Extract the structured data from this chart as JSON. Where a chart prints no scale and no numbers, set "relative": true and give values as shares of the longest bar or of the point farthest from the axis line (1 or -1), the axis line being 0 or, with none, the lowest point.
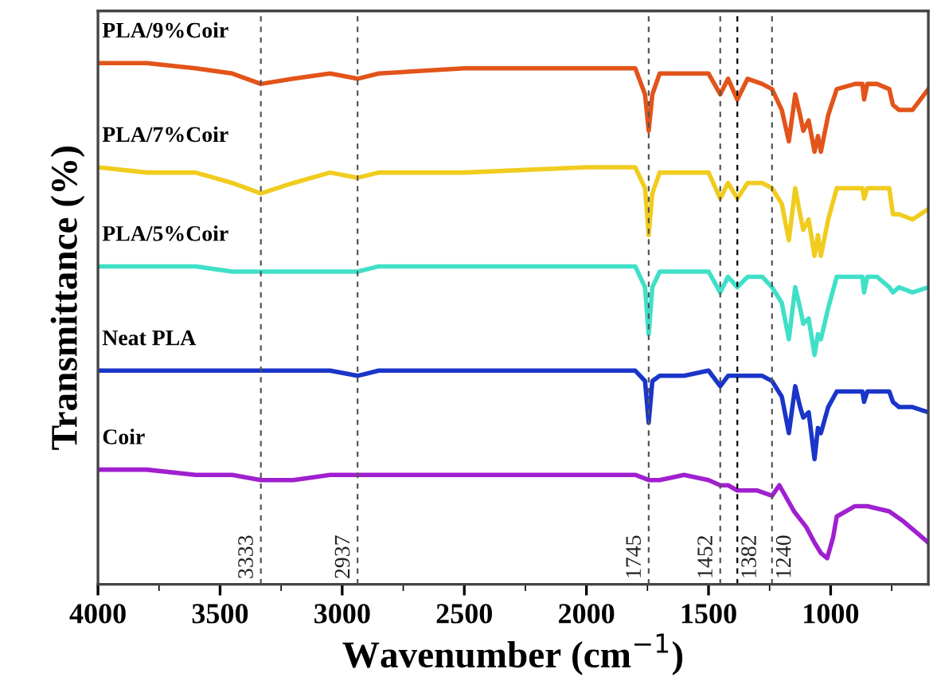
{
  "chart_data": {
    "type": "line",
    "relative": true,
    "xlabel": "Wavenumber (cm$^{−1}$)",
    "ylabel": "Transmittance (%)",
    "xlim": [
      4000,
      600
    ],
    "xticks": [
      4000,
      3500,
      3000,
      2500,
      2000,
      1500,
      1000
    ],
    "legend": false,
    "grid": false,
    "ref_lines": [
      {
        "axis": "x",
        "value": 3333,
        "label": "3333",
        "line_style": "dashed",
        "color": "#555555"
      },
      {
        "axis": "x",
        "value": 2937,
        "label": "2937",
        "line_style": "dashed",
        "color": "#555555"
      },
      {
        "axis": "x",
        "value": 1745,
        "label": "1745",
        "line_style": "dashed",
        "color": "#555555"
      },
      {
        "axis": "x",
        "value": 1452,
        "label": "1452",
        "line_style": "dashed",
        "color": "#555555"
      },
      {
        "axis": "x",
        "value": 1382,
        "label": "1382",
        "line_style": "dashed",
        "color": "#000000"
      },
      {
        "axis": "x",
        "value": 1240,
        "label": "1240",
        "line_style": "dashed",
        "color": "#555555"
      }
    ],
    "series": [
      {
        "name": "PLA/9%Coir",
        "color": "#e2541a",
        "x": [
          4000,
          3800,
          3600,
          3450,
          3333,
          3200,
          3050,
          2937,
          2850,
          2500,
          2000,
          1800,
          1760,
          1745,
          1730,
          1700,
          1600,
          1500,
          1452,
          1420,
          1382,
          1340,
          1280,
          1240,
          1200,
          1171,
          1145,
          1125,
          1112,
          1090,
          1066,
          1052,
          1040,
          1010,
          975,
          900,
          870,
          863,
          850,
          810,
          760,
          745,
          720,
          665,
          600
        ],
        "values": [
          1.0,
          1.0,
          0.99,
          0.98,
          0.96,
          0.97,
          0.98,
          0.97,
          0.98,
          0.99,
          0.99,
          0.99,
          0.94,
          0.87,
          0.94,
          0.98,
          0.98,
          0.98,
          0.94,
          0.97,
          0.93,
          0.97,
          0.96,
          0.95,
          0.91,
          0.85,
          0.94,
          0.9,
          0.87,
          0.89,
          0.83,
          0.86,
          0.83,
          0.9,
          0.95,
          0.96,
          0.96,
          0.93,
          0.96,
          0.96,
          0.95,
          0.92,
          0.91,
          0.91,
          0.95
        ]
      },
      {
        "name": "PLA/7%Coir",
        "color": "#f0cc1e",
        "x": [
          4000,
          3800,
          3600,
          3450,
          3333,
          3200,
          3050,
          2937,
          2850,
          2500,
          2000,
          1800,
          1760,
          1745,
          1730,
          1700,
          1600,
          1500,
          1452,
          1420,
          1382,
          1340,
          1280,
          1240,
          1200,
          1171,
          1145,
          1125,
          1112,
          1090,
          1066,
          1052,
          1040,
          1010,
          975,
          900,
          870,
          863,
          850,
          810,
          760,
          745,
          720,
          665,
          600
        ],
        "values": [
          0.8,
          0.79,
          0.79,
          0.77,
          0.75,
          0.77,
          0.79,
          0.78,
          0.79,
          0.79,
          0.8,
          0.8,
          0.76,
          0.67,
          0.75,
          0.79,
          0.79,
          0.79,
          0.74,
          0.77,
          0.74,
          0.77,
          0.77,
          0.76,
          0.73,
          0.66,
          0.76,
          0.71,
          0.68,
          0.7,
          0.63,
          0.67,
          0.63,
          0.7,
          0.76,
          0.76,
          0.76,
          0.74,
          0.76,
          0.76,
          0.76,
          0.71,
          0.71,
          0.7,
          0.72
        ]
      },
      {
        "name": "PLA/5%Coir",
        "color": "#40e0c8",
        "x": [
          4000,
          3800,
          3600,
          3450,
          3333,
          3200,
          3050,
          2937,
          2850,
          2500,
          2000,
          1800,
          1760,
          1745,
          1730,
          1700,
          1600,
          1500,
          1452,
          1420,
          1382,
          1340,
          1280,
          1240,
          1200,
          1171,
          1145,
          1125,
          1112,
          1090,
          1066,
          1052,
          1040,
          1010,
          975,
          900,
          870,
          863,
          850,
          810,
          760,
          745,
          720,
          665,
          600
        ],
        "values": [
          0.61,
          0.61,
          0.61,
          0.6,
          0.6,
          0.6,
          0.6,
          0.6,
          0.61,
          0.61,
          0.61,
          0.61,
          0.57,
          0.48,
          0.57,
          0.6,
          0.6,
          0.6,
          0.56,
          0.59,
          0.57,
          0.59,
          0.59,
          0.57,
          0.54,
          0.47,
          0.57,
          0.53,
          0.5,
          0.51,
          0.44,
          0.48,
          0.47,
          0.53,
          0.59,
          0.59,
          0.59,
          0.56,
          0.59,
          0.59,
          0.57,
          0.56,
          0.57,
          0.56,
          0.57
        ]
      },
      {
        "name": "Neat PLA",
        "color": "#1a35c8",
        "x": [
          4000,
          3800,
          3600,
          3450,
          3333,
          3200,
          3050,
          2937,
          2850,
          2500,
          2000,
          1800,
          1760,
          1745,
          1730,
          1700,
          1600,
          1500,
          1452,
          1420,
          1382,
          1340,
          1280,
          1240,
          1200,
          1171,
          1145,
          1125,
          1112,
          1090,
          1066,
          1052,
          1040,
          1010,
          975,
          900,
          870,
          863,
          850,
          810,
          760,
          745,
          720,
          665,
          600
        ],
        "values": [
          0.41,
          0.41,
          0.41,
          0.41,
          0.41,
          0.41,
          0.41,
          0.4,
          0.41,
          0.41,
          0.41,
          0.41,
          0.39,
          0.31,
          0.39,
          0.4,
          0.4,
          0.41,
          0.38,
          0.4,
          0.4,
          0.4,
          0.4,
          0.39,
          0.36,
          0.29,
          0.38,
          0.34,
          0.32,
          0.33,
          0.24,
          0.3,
          0.29,
          0.34,
          0.37,
          0.37,
          0.37,
          0.35,
          0.37,
          0.37,
          0.37,
          0.35,
          0.34,
          0.34,
          0.33
        ]
      },
      {
        "name": "Coir",
        "color": "#a020d0",
        "x": [
          4000,
          3800,
          3600,
          3450,
          3333,
          3200,
          3050,
          2937,
          2500,
          2000,
          1800,
          1745,
          1700,
          1600,
          1500,
          1452,
          1420,
          1382,
          1300,
          1240,
          1210,
          1150,
          1100,
          1066,
          1040,
          1014,
          990,
          975,
          900,
          850,
          760,
          700,
          650,
          600
        ],
        "values": [
          0.22,
          0.22,
          0.21,
          0.21,
          0.2,
          0.2,
          0.21,
          0.21,
          0.21,
          0.21,
          0.21,
          0.2,
          0.2,
          0.21,
          0.2,
          0.19,
          0.19,
          0.18,
          0.18,
          0.17,
          0.19,
          0.14,
          0.11,
          0.08,
          0.06,
          0.05,
          0.09,
          0.13,
          0.15,
          0.15,
          0.14,
          0.12,
          0.1,
          0.08
        ]
      }
    ]
  }
}
